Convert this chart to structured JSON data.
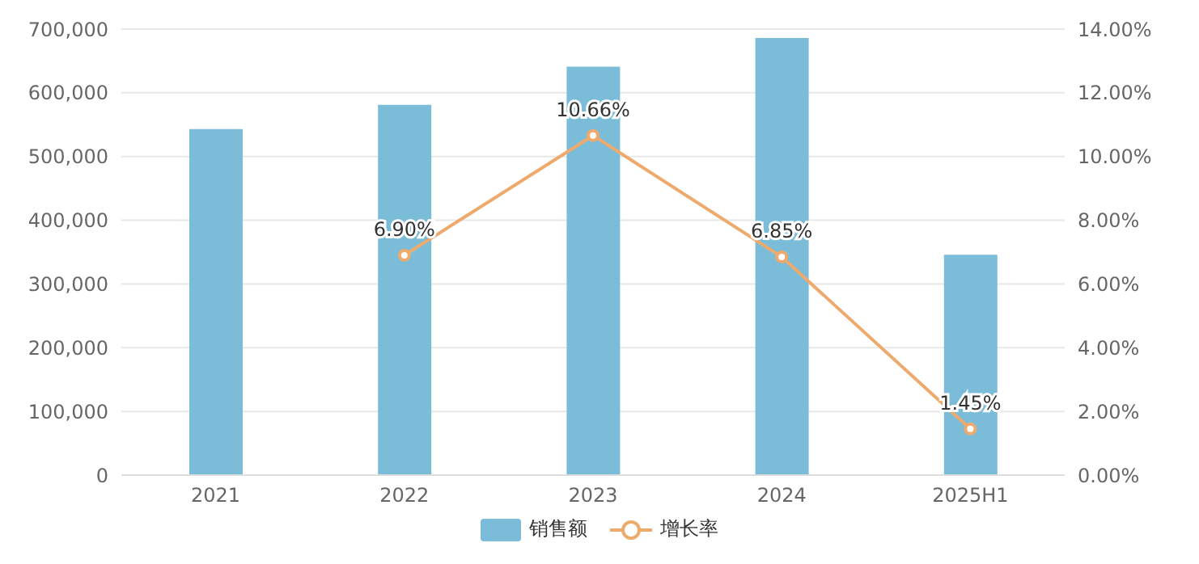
{
  "chart_data": {
    "type": "bar",
    "categories": [
      "2021",
      "2022",
      "2023",
      "2024",
      "2025H1"
    ],
    "series": [
      {
        "name": "销售额",
        "color": "#7bbdd9",
        "values": [
          543000,
          581000,
          641000,
          686000,
          346000
        ]
      },
      {
        "name": "增长率",
        "type": "line",
        "axis": "y2",
        "color": "#eeaa6c",
        "marker": "circle",
        "values": [
          null,
          6.9,
          10.66,
          6.85,
          1.45
        ],
        "value_labels": [
          null,
          "6.90%",
          "10.66%",
          "6.85%",
          "1.45%"
        ]
      }
    ],
    "ylim": [
      0,
      700000
    ],
    "yticks": [
      {
        "value": 0,
        "label": "0"
      },
      {
        "value": 100000,
        "label": "100,000"
      },
      {
        "value": 200000,
        "label": "200,000"
      },
      {
        "value": 300000,
        "label": "300,000"
      },
      {
        "value": 400000,
        "label": "400,000"
      },
      {
        "value": 500000,
        "label": "500,000"
      },
      {
        "value": 600000,
        "label": "600,000"
      },
      {
        "value": 700000,
        "label": "700,000"
      }
    ],
    "y2lim": [
      0,
      14
    ],
    "y2ticks": [
      {
        "value": 0,
        "label": "0.00%"
      },
      {
        "value": 2,
        "label": "2.00%"
      },
      {
        "value": 4,
        "label": "4.00%"
      },
      {
        "value": 6,
        "label": "6.00%"
      },
      {
        "value": 8,
        "label": "8.00%"
      },
      {
        "value": 10,
        "label": "10.00%"
      },
      {
        "value": 12,
        "label": "12.00%"
      },
      {
        "value": 14,
        "label": "14.00%"
      }
    ],
    "grid": "y",
    "legend": "bottom"
  }
}
